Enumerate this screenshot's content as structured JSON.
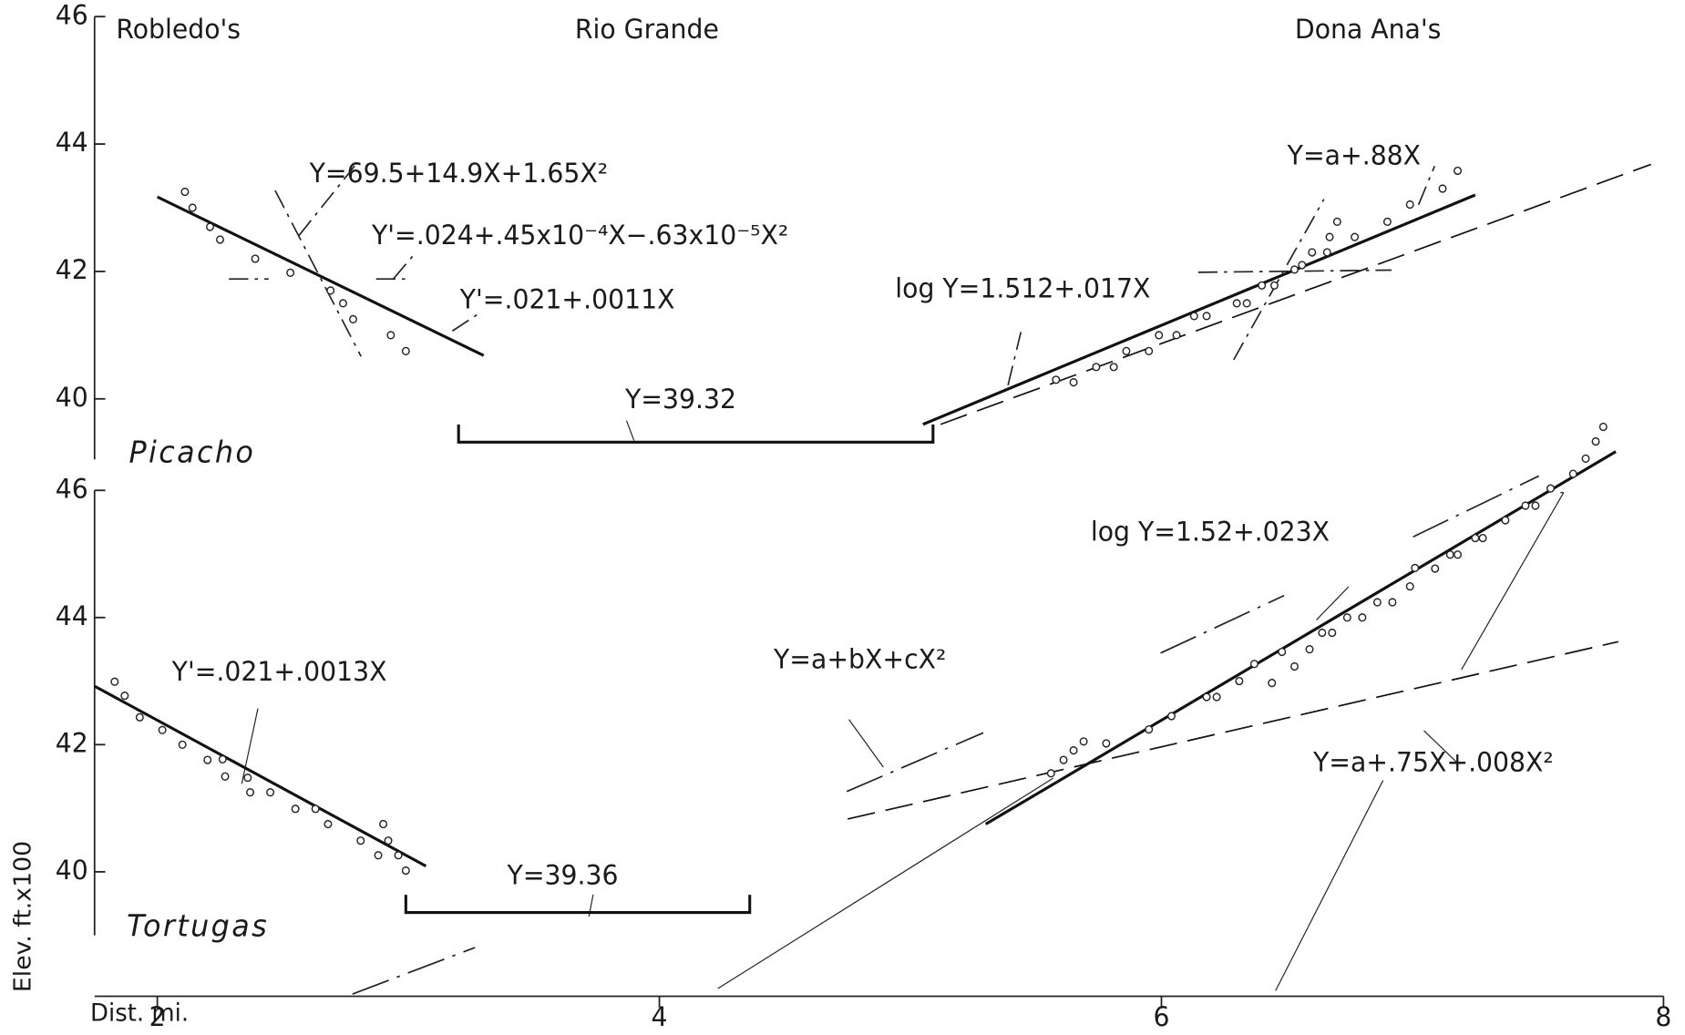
{
  "chart_data": [
    {
      "type": "scatter",
      "panel_label": "Picacho",
      "site_labels": [
        "Robledo's",
        "Rio Grande",
        "Dona Ana's"
      ],
      "ylim": [
        39.05,
        46
      ],
      "yticks": [
        40,
        42,
        44,
        46
      ],
      "points": {
        "x": [
          2.11,
          2.14,
          2.21,
          2.25,
          2.39,
          2.53,
          2.69,
          2.74,
          2.78,
          2.93,
          2.99,
          5.58,
          5.65,
          5.74,
          5.81,
          5.86,
          5.95,
          5.99,
          6.06,
          6.13,
          6.18,
          6.3,
          6.34,
          6.4,
          6.45,
          6.53,
          6.56,
          6.6,
          6.66,
          6.67,
          6.7,
          6.77,
          6.9,
          6.99,
          7.12,
          7.18
        ],
        "y": [
          43.25,
          43.0,
          42.7,
          42.5,
          42.2,
          41.98,
          41.7,
          41.5,
          41.25,
          41.0,
          40.75,
          40.3,
          40.26,
          40.5,
          40.5,
          40.75,
          40.75,
          41.0,
          41.0,
          41.3,
          41.3,
          41.5,
          41.5,
          41.78,
          41.78,
          42.03,
          42.1,
          42.3,
          42.3,
          42.54,
          42.78,
          42.54,
          42.78,
          43.05,
          43.3,
          43.58
        ]
      },
      "lines": [
        {
          "x": [
            2.0,
            3.3
          ],
          "y": [
            43.17,
            40.68
          ],
          "style": "solid"
        },
        {
          "x": [
            5.05,
            7.25
          ],
          "y": [
            39.6,
            43.2
          ],
          "style": "solid"
        },
        {
          "x": [
            5.12,
            7.95
          ],
          "y": [
            39.6,
            43.68
          ],
          "style": "dashed"
        }
      ],
      "bracket": {
        "x": [
          3.2,
          5.09
        ],
        "y": 39.32,
        "label": "Y=39.32"
      },
      "annotations": [
        "Y=69.5+14.9X+1.65X²",
        "Y'=.024+.45x10⁻⁴X−.63x10⁻⁵X²",
        "Y'=.021+.0011X",
        "log Y=1.512+.017X",
        "Y=a+.88X"
      ]
    },
    {
      "type": "scatter",
      "panel_label": "Tortugas",
      "ylim": [
        39,
        46
      ],
      "yticks": [
        40,
        42,
        44,
        46
      ],
      "xlim": [
        1.75,
        8
      ],
      "xticks": [
        2,
        4,
        6,
        8
      ],
      "xlabel": "Dist. mi.",
      "ylabel": "Elev. ft.x100",
      "points": {
        "x": [
          1.83,
          1.87,
          1.93,
          2.02,
          2.1,
          2.2,
          2.26,
          2.27,
          2.36,
          2.37,
          2.45,
          2.55,
          2.63,
          2.68,
          2.81,
          2.88,
          2.9,
          2.92,
          2.96,
          2.99,
          5.56,
          5.61,
          5.65,
          5.69,
          5.78,
          5.95,
          6.04,
          6.18,
          6.22,
          6.31,
          6.37,
          6.44,
          6.48,
          6.53,
          6.59,
          6.64,
          6.68,
          6.74,
          6.8,
          6.86,
          6.92,
          6.99,
          7.01,
          7.09,
          7.15,
          7.18,
          7.25,
          7.28,
          7.37,
          7.45,
          7.49,
          7.55,
          7.64,
          7.69,
          7.73,
          7.76
        ],
        "y": [
          42.99,
          42.77,
          42.43,
          42.23,
          42.0,
          41.76,
          41.77,
          41.5,
          41.48,
          41.25,
          41.25,
          40.99,
          40.99,
          40.75,
          40.49,
          40.26,
          40.75,
          40.49,
          40.26,
          40.02,
          41.55,
          41.76,
          41.91,
          42.05,
          42.02,
          42.24,
          42.45,
          42.75,
          42.75,
          43.0,
          43.27,
          42.97,
          43.46,
          43.23,
          43.5,
          43.76,
          43.76,
          44.0,
          44.0,
          44.24,
          44.24,
          44.49,
          44.78,
          44.77,
          44.99,
          44.99,
          45.25,
          45.25,
          45.53,
          45.76,
          45.76,
          46.03,
          46.26,
          46.5,
          46.77,
          47.0
        ]
      },
      "lines": [
        {
          "x": [
            1.75,
            3.07
          ],
          "y": [
            42.92,
            40.09
          ],
          "style": "solid"
        },
        {
          "x": [
            5.3,
            7.81
          ],
          "y": [
            40.75,
            46.61
          ],
          "style": "solid"
        },
        {
          "x": [
            4.75,
            7.82
          ],
          "y": [
            40.83,
            43.62
          ],
          "style": "dashed"
        }
      ],
      "bracket": {
        "x": [
          2.99,
          4.36
        ],
        "y": 39.36,
        "label": "Y=39.36"
      },
      "annotations": [
        "Y'=.021+.0013X",
        "Y=a+bX+cX²",
        "log Y=1.52+.023X",
        "Y=a+.75X+.008X²"
      ]
    }
  ]
}
